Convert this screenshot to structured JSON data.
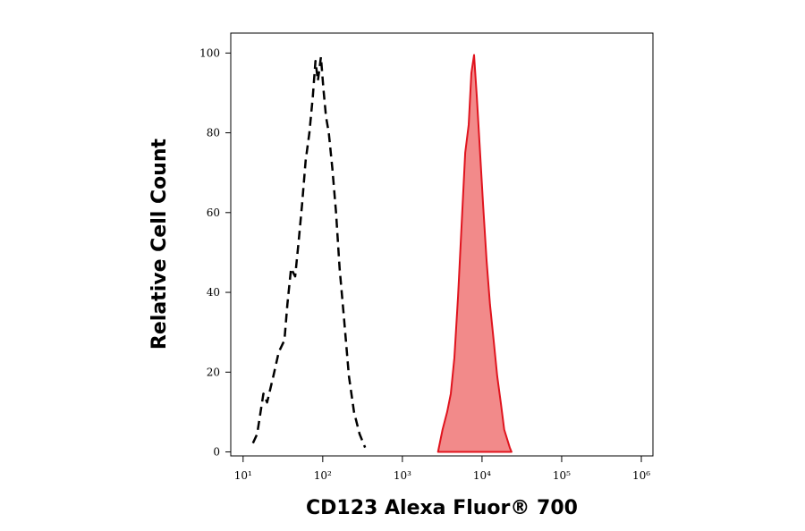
{
  "chart_data": {
    "type": "line",
    "x_label": "CD123 Alexa Fluor® 700",
    "y_label": "Relative Cell Count",
    "xscale": "log",
    "xlim": [
      7,
      1400000
    ],
    "ylim": [
      -1,
      105
    ],
    "xticks": [
      {
        "value": 10,
        "label": "10¹"
      },
      {
        "value": 100,
        "label": "10²"
      },
      {
        "value": 1000,
        "label": "10³"
      },
      {
        "value": 10000,
        "label": "10⁴"
      },
      {
        "value": 100000,
        "label": "10⁵"
      },
      {
        "value": 1000000,
        "label": "10⁶"
      }
    ],
    "yticks": [
      0,
      20,
      40,
      60,
      80,
      100
    ],
    "series": [
      {
        "color": "#000000",
        "dashed": true,
        "filled": false,
        "x": [
          13.3,
          15,
          18,
          20,
          24,
          28,
          33,
          36,
          40,
          45,
          50,
          55,
          61,
          68,
          75,
          81,
          87,
          95,
          102,
          110,
          119,
          132,
          147,
          163,
          186,
          213,
          247,
          290,
          340
        ],
        "values": [
          2.2,
          4.5,
          14.6,
          12.4,
          19,
          25,
          28,
          37,
          46,
          44,
          53,
          62,
          73,
          80,
          89,
          98,
          93,
          99,
          91,
          84,
          80,
          71,
          60,
          46,
          33,
          19,
          10,
          4.5,
          1.1
        ]
      },
      {
        "color": "#e0141e",
        "fill": "#f28a8a",
        "dashed": false,
        "filled": true,
        "x": [
          2800,
          3200,
          3650,
          4050,
          4500,
          5000,
          5550,
          6150,
          6800,
          7350,
          7950,
          8600,
          9300,
          10300,
          11400,
          12600,
          14000,
          15500,
          17300,
          19000,
          22300,
          23500
        ],
        "values": [
          0,
          5.6,
          10,
          14.6,
          23.6,
          39,
          57,
          75,
          82,
          95,
          99.5,
          89,
          77.5,
          62,
          48,
          37,
          28,
          19,
          12,
          5.6,
          1.1,
          0
        ]
      }
    ]
  }
}
